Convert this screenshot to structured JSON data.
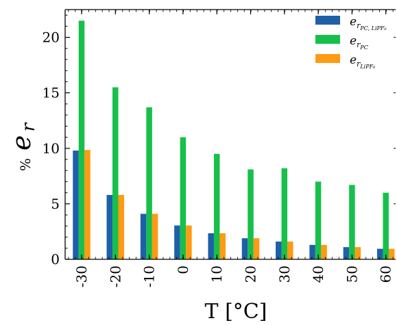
{
  "chart_data": {
    "type": "bar",
    "categories": [
      "-30",
      "-20",
      "-10",
      "0",
      "10",
      "20",
      "30",
      "40",
      "50",
      "60"
    ],
    "series": [
      {
        "name": "e_r_PC,LiPF6",
        "color": "#1f5fa8",
        "values": [
          9.8,
          5.8,
          4.1,
          3.05,
          2.35,
          1.9,
          1.6,
          1.3,
          1.1,
          0.95
        ]
      },
      {
        "name": "e_r_PC",
        "color": "#17c04a",
        "values": [
          21.5,
          15.5,
          13.7,
          11.0,
          9.5,
          8.1,
          8.2,
          7.0,
          6.7,
          6.0
        ]
      },
      {
        "name": "e_r_LiPF6",
        "color": "#ff9a12",
        "values": [
          9.85,
          5.8,
          4.1,
          3.05,
          2.35,
          1.9,
          1.6,
          1.3,
          1.1,
          0.95
        ]
      }
    ],
    "ylim": [
      0,
      22.5
    ],
    "yticks": [
      0,
      5,
      10,
      15,
      20
    ],
    "xlabel": "T [°C]",
    "ylabel_prefix": "%",
    "ylabel_symbol": "e",
    "ylabel_subscript": "r",
    "legend_position": "top-right",
    "legend_entries": [
      {
        "base": "e",
        "sub": "r",
        "subsub": "PC, LiPF₆"
      },
      {
        "base": "e",
        "sub": "r",
        "subsub": "PC"
      },
      {
        "base": "e",
        "sub": "r",
        "subsub": "LiPF₆"
      }
    ],
    "grid": false
  }
}
